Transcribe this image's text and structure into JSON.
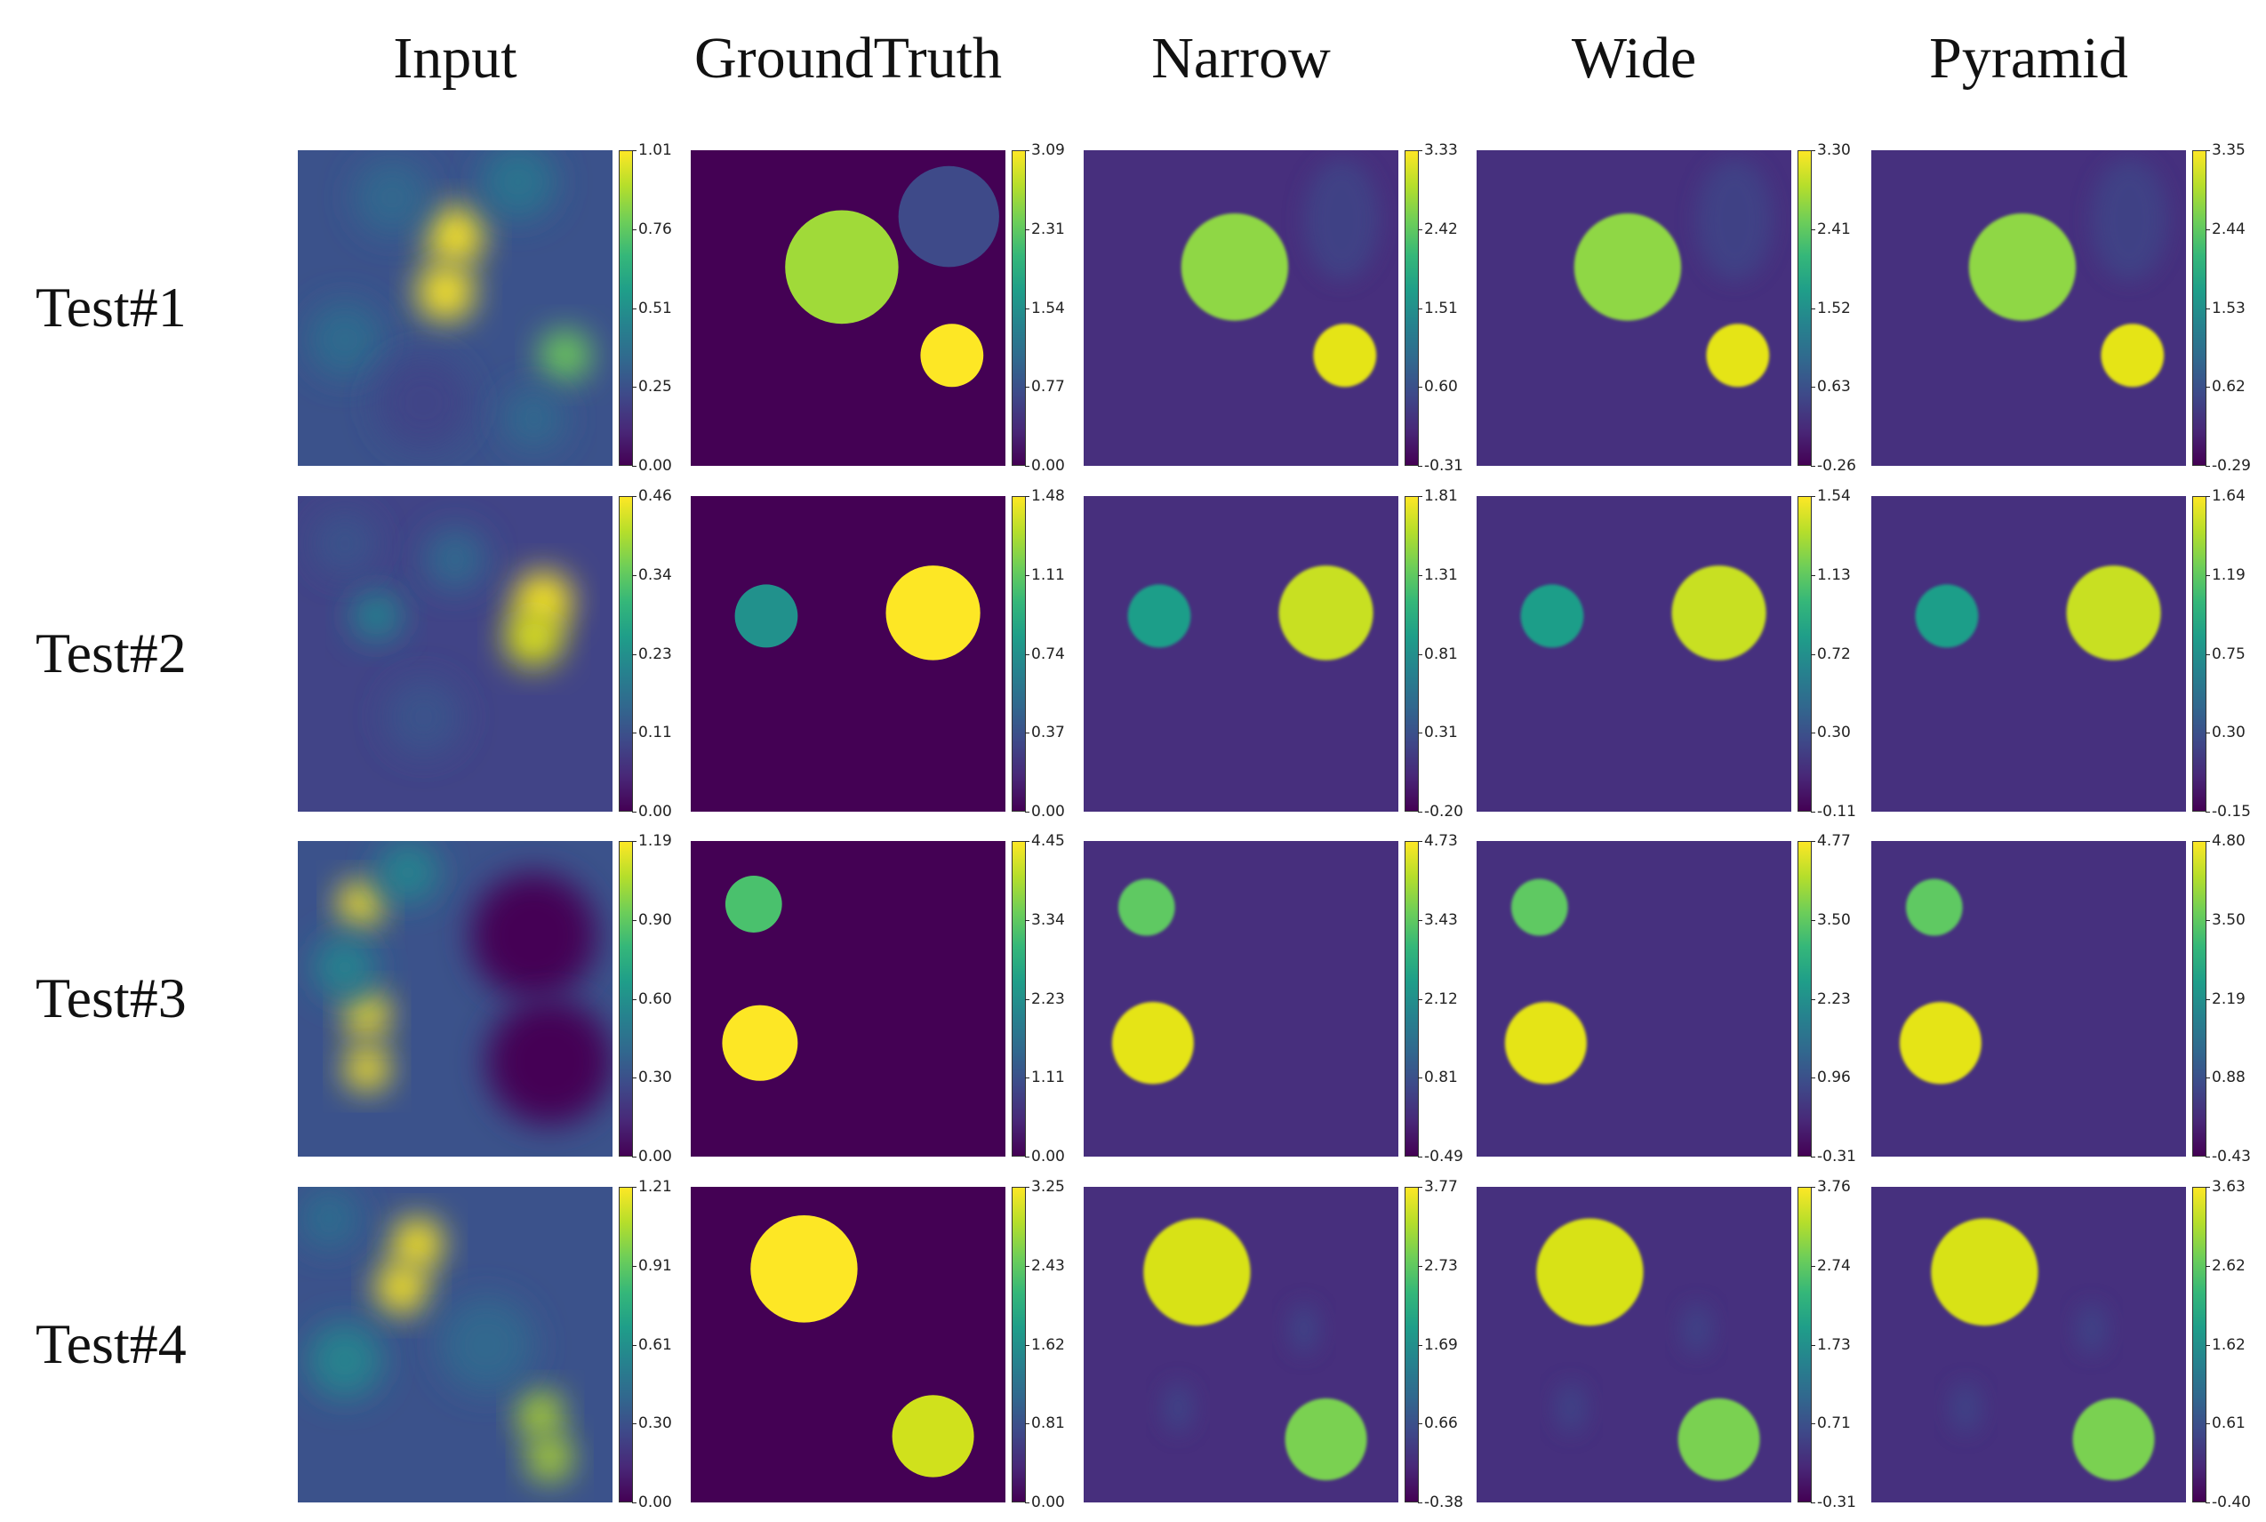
{
  "headers": [
    "Input",
    "GroundTruth",
    "Narrow",
    "Wide",
    "Pyramid"
  ],
  "colormap": [
    "#440154",
    "#482878",
    "#3e4989",
    "#31688e",
    "#26828e",
    "#1f9e89",
    "#35b779",
    "#6ece58",
    "#b5de2b",
    "#fde725"
  ],
  "rows": [
    {
      "label": "Test#1",
      "colorbars": [
        [
          "1.01",
          "0.76",
          "0.51",
          "0.25",
          "0.00"
        ],
        [
          "3.09",
          "2.31",
          "1.54",
          "0.77",
          "0.00"
        ],
        [
          "3.33",
          "2.42",
          "1.51",
          "0.60",
          "-0.31"
        ],
        [
          "3.30",
          "2.41",
          "1.52",
          "0.63",
          "-0.26"
        ],
        [
          "3.35",
          "2.44",
          "1.53",
          "0.62",
          "-0.29"
        ]
      ]
    },
    {
      "label": "Test#2",
      "colorbars": [
        [
          "0.46",
          "0.34",
          "0.23",
          "0.11",
          "0.00"
        ],
        [
          "1.48",
          "1.11",
          "0.74",
          "0.37",
          "0.00"
        ],
        [
          "1.81",
          "1.31",
          "0.81",
          "0.31",
          "-0.20"
        ],
        [
          "1.54",
          "1.13",
          "0.72",
          "0.30",
          "-0.11"
        ],
        [
          "1.64",
          "1.19",
          "0.75",
          "0.30",
          "-0.15"
        ]
      ]
    },
    {
      "label": "Test#3",
      "colorbars": [
        [
          "1.19",
          "0.90",
          "0.60",
          "0.30",
          "0.00"
        ],
        [
          "4.45",
          "3.34",
          "2.23",
          "1.11",
          "0.00"
        ],
        [
          "4.73",
          "3.43",
          "2.12",
          "0.81",
          "-0.49"
        ],
        [
          "4.77",
          "3.50",
          "2.23",
          "0.96",
          "-0.31"
        ],
        [
          "4.80",
          "3.50",
          "2.19",
          "0.88",
          "-0.43"
        ]
      ]
    },
    {
      "label": "Test#4",
      "colorbars": [
        [
          "1.21",
          "0.91",
          "0.61",
          "0.30",
          "0.00"
        ],
        [
          "3.25",
          "2.43",
          "1.62",
          "0.81",
          "0.00"
        ],
        [
          "3.77",
          "2.73",
          "1.69",
          "0.66",
          "-0.38"
        ],
        [
          "3.76",
          "2.74",
          "1.73",
          "0.71",
          "-0.31"
        ],
        [
          "3.63",
          "2.62",
          "1.62",
          "0.61",
          "-0.40"
        ]
      ]
    }
  ]
}
